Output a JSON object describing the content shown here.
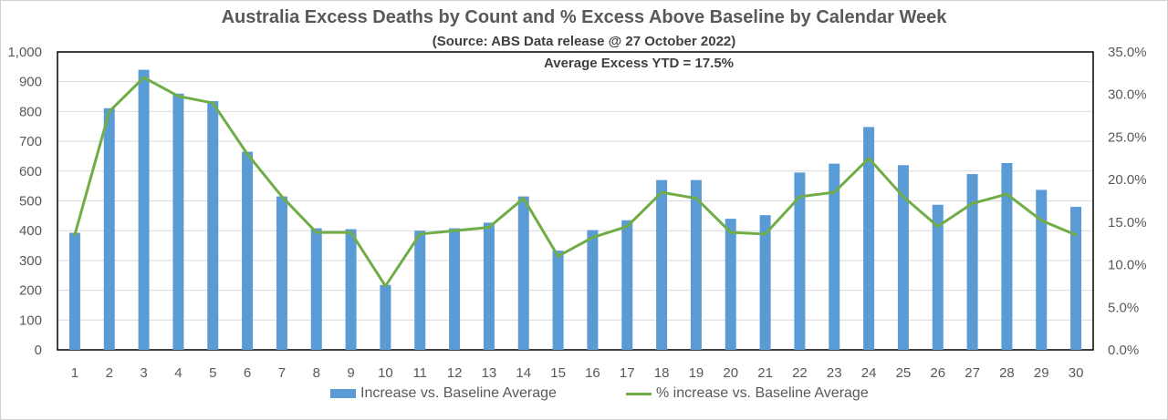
{
  "chart_data": {
    "type": "bar",
    "title": "Australia Excess Deaths by Count and % Excess Above Baseline by Calendar Week",
    "subtitle": "(Source: ABS Data release @ 27 October 2022)",
    "annotation": "Average Excess YTD = 17.5%",
    "categories": [
      "1",
      "2",
      "3",
      "4",
      "5",
      "6",
      "7",
      "8",
      "9",
      "10",
      "11",
      "12",
      "13",
      "14",
      "15",
      "16",
      "17",
      "18",
      "19",
      "20",
      "21",
      "22",
      "23",
      "24",
      "25",
      "26",
      "27",
      "28",
      "29",
      "30"
    ],
    "series": [
      {
        "name": "Increase vs. Baseline Average",
        "type": "bar",
        "axis": "left",
        "color": "#5b9bd5",
        "values": [
          393,
          811,
          940,
          860,
          835,
          665,
          515,
          408,
          405,
          218,
          400,
          408,
          427,
          515,
          333,
          402,
          435,
          570,
          570,
          440,
          452,
          595,
          625,
          748,
          620,
          487,
          590,
          627,
          537,
          480
        ]
      },
      {
        "name": "% increase vs. Baseline Average",
        "type": "line",
        "axis": "right",
        "color": "#70ad47",
        "values": [
          13.5,
          28.0,
          32.0,
          29.8,
          29.0,
          23.0,
          18.0,
          13.8,
          13.8,
          7.5,
          13.6,
          14.0,
          14.4,
          17.8,
          11.0,
          13.2,
          14.5,
          18.5,
          17.8,
          13.8,
          13.6,
          18.0,
          18.5,
          22.5,
          18.0,
          14.5,
          17.2,
          18.3,
          15.2,
          13.5
        ]
      }
    ],
    "y_left": {
      "ylim": [
        0,
        1000
      ],
      "ticks": [
        0,
        100,
        200,
        300,
        400,
        500,
        600,
        700,
        800,
        900,
        1000
      ],
      "tick_labels": [
        "0",
        "100",
        "200",
        "300",
        "400",
        "500",
        "600",
        "700",
        "800",
        "900",
        "1,000"
      ]
    },
    "y_right": {
      "ylim": [
        0,
        35
      ],
      "ticks": [
        0,
        5,
        10,
        15,
        20,
        25,
        30,
        35
      ],
      "tick_labels": [
        "0.0%",
        "5.0%",
        "10.0%",
        "15.0%",
        "20.0%",
        "25.0%",
        "30.0%",
        "35.0%"
      ]
    },
    "grid": true,
    "legend": "bottom"
  }
}
